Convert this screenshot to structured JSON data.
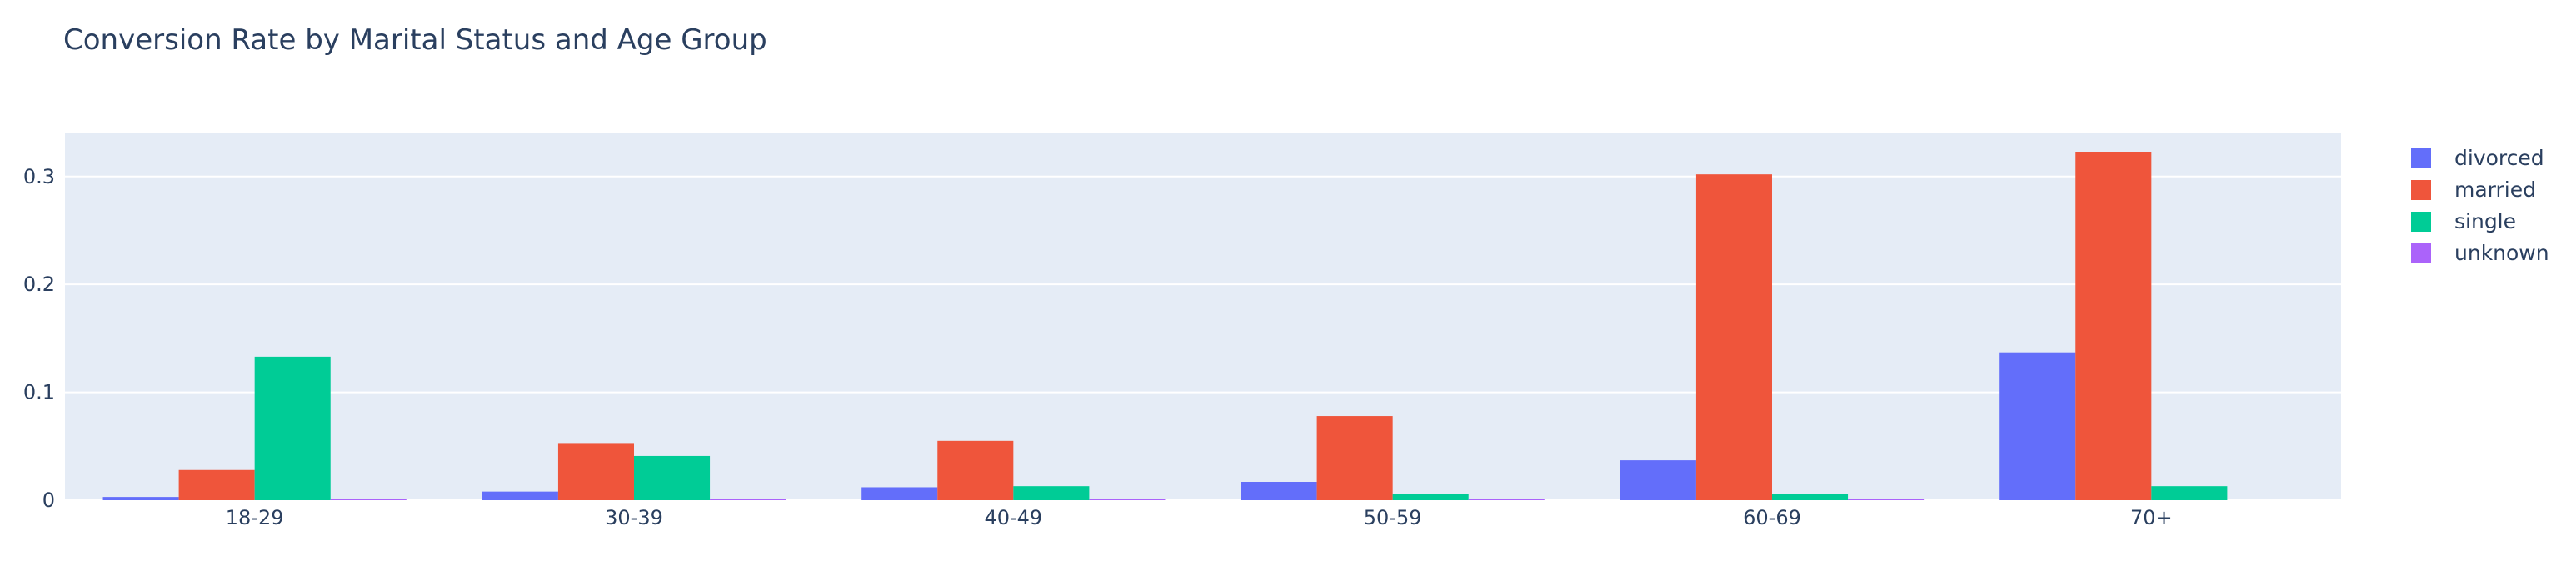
{
  "chart_data": {
    "type": "bar",
    "title": "Conversion Rate by Marital Status and Age Group",
    "xlabel": "",
    "ylabel": "",
    "categories": [
      "18-29",
      "30-39",
      "40-49",
      "50-59",
      "60-69",
      "70+"
    ],
    "series": [
      {
        "name": "divorced",
        "color": "#636efa",
        "values": [
          0.003,
          0.008,
          0.012,
          0.017,
          0.037,
          0.137
        ]
      },
      {
        "name": "married",
        "color": "#ef553b",
        "values": [
          0.028,
          0.053,
          0.055,
          0.078,
          0.302,
          0.323
        ]
      },
      {
        "name": "single",
        "color": "#00cc96",
        "values": [
          0.133,
          0.041,
          0.013,
          0.006,
          0.006,
          0.013
        ]
      },
      {
        "name": "unknown",
        "color": "#ab63fa",
        "values": [
          0.001,
          0.001,
          0.001,
          0.001,
          0.001,
          0.0
        ]
      }
    ],
    "ylim": [
      0,
      0.34
    ],
    "yticks": [
      {
        "value": 0,
        "label": "0"
      },
      {
        "value": 0.1,
        "label": "0.1"
      },
      {
        "value": 0.2,
        "label": "0.2"
      },
      {
        "value": 0.3,
        "label": "0.3"
      }
    ],
    "grid": true,
    "legend_position": "top-right",
    "plot_background": "#e5ecf6"
  }
}
